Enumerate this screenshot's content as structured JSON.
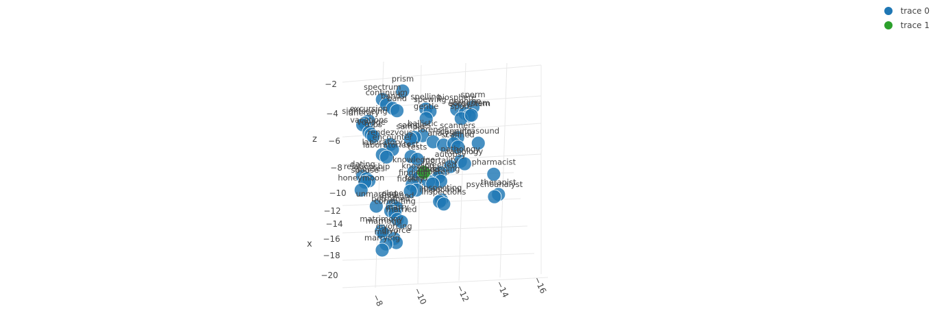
{
  "chart_data": {
    "type": "scatter",
    "mode": "markers+text",
    "title": "",
    "axes": {
      "x": {
        "label": "x",
        "ticks": [
          "−12",
          "−14",
          "−16",
          "−18",
          "−20"
        ]
      },
      "y": {
        "label": "",
        "ticks": [
          "−8",
          "−10",
          "−12",
          "−14",
          "−16"
        ]
      },
      "z": {
        "label": "z",
        "ticks": [
          "−2",
          "−4",
          "−6",
          "−8",
          "−10"
        ]
      }
    },
    "legend": {
      "placement": "top-right"
    },
    "series": [
      {
        "name": "trace 0",
        "color": "#1f77b4",
        "points": [
          {
            "label": "prism",
            "x": -11.3,
            "y": -9.3,
            "z": -1.0
          },
          {
            "label": "spectrum",
            "x": -11.5,
            "y": -8.3,
            "z": -2.0
          },
          {
            "label": "continuum",
            "x": -11.6,
            "y": -8.5,
            "z": -2.4
          },
          {
            "label": "bands",
            "x": -11.7,
            "y": -8.8,
            "z": -2.6
          },
          {
            "label": "band",
            "x": -11.8,
            "y": -9.0,
            "z": -2.7
          },
          {
            "label": "spelling",
            "x": -11.9,
            "y": -10.4,
            "z": -2.0
          },
          {
            "label": "spewing",
            "x": -12.0,
            "y": -10.6,
            "z": -2.1
          },
          {
            "label": "gentle",
            "x": -12.3,
            "y": -10.4,
            "z": -2.6
          },
          {
            "label": "sperm",
            "x": -11.8,
            "y": -12.7,
            "z": -1.2
          },
          {
            "label": "biosphere",
            "x": -12.0,
            "y": -11.9,
            "z": -1.5
          },
          {
            "label": "genome",
            "x": -12.1,
            "y": -12.3,
            "z": -1.7
          },
          {
            "label": "ecosystem",
            "x": -12.2,
            "y": -12.5,
            "z": -1.8
          },
          {
            "label": "spore",
            "x": -12.4,
            "y": -12.1,
            "z": -2.0
          },
          {
            "label": "organism",
            "x": -12.3,
            "y": -12.6,
            "z": -1.6
          },
          {
            "label": "excursion",
            "x": -12.4,
            "y": -7.6,
            "z": -3.6
          },
          {
            "label": "sightseeing",
            "x": -12.5,
            "y": -7.4,
            "z": -3.8
          },
          {
            "label": "itinerary",
            "x": -12.6,
            "y": -7.3,
            "z": -3.9
          },
          {
            "label": "vacations",
            "x": -12.8,
            "y": -7.6,
            "z": -4.4
          },
          {
            "label": "voyage",
            "x": -12.9,
            "y": -7.7,
            "z": -4.5
          },
          {
            "label": "trips",
            "x": -13.0,
            "y": -7.8,
            "z": -4.6
          },
          {
            "label": "ballistic",
            "x": -13.0,
            "y": -10.2,
            "z": -3.8
          },
          {
            "label": "samples",
            "x": -13.1,
            "y": -9.8,
            "z": -4.0
          },
          {
            "label": "sample",
            "x": -13.2,
            "y": -9.6,
            "z": -4.1
          },
          {
            "label": "forensic",
            "x": -13.3,
            "y": -10.7,
            "z": -4.0
          },
          {
            "label": "analysis",
            "x": -13.4,
            "y": -11.2,
            "z": -4.1
          },
          {
            "label": "scanners",
            "x": -13.1,
            "y": -11.9,
            "z": -3.4
          },
          {
            "label": "scanning",
            "x": -13.4,
            "y": -11.7,
            "z": -3.8
          },
          {
            "label": "ultrasound",
            "x": -13.2,
            "y": -12.9,
            "z": -3.6
          },
          {
            "label": "scanned",
            "x": -13.5,
            "y": -11.9,
            "z": -4.0
          },
          {
            "label": "rendezvous",
            "x": -13.6,
            "y": -8.6,
            "z": -4.6
          },
          {
            "label": "encounter",
            "x": -13.8,
            "y": -8.7,
            "z": -4.9
          },
          {
            "label": "laboratory",
            "x": -14.0,
            "y": -8.2,
            "z": -5.4
          },
          {
            "label": "laboratories",
            "x": -14.1,
            "y": -8.4,
            "z": -5.5
          },
          {
            "label": "test",
            "x": -14.0,
            "y": -9.6,
            "z": -5.2
          },
          {
            "label": "tests",
            "x": -14.1,
            "y": -9.9,
            "z": -5.3
          },
          {
            "label": "pathology",
            "x": -14.0,
            "y": -12.0,
            "z": -5.0
          },
          {
            "label": "radiology",
            "x": -14.1,
            "y": -12.2,
            "z": -5.1
          },
          {
            "label": "autopsy",
            "x": -14.3,
            "y": -11.5,
            "z": -5.4
          },
          {
            "label": "pharmacist",
            "x": -14.5,
            "y": -13.6,
            "z": -5.4
          },
          {
            "label": "knowledge",
            "x": -14.7,
            "y": -9.7,
            "z": -6.1
          },
          {
            "label": "knowing",
            "x": -15.0,
            "y": -9.9,
            "z": -6.4
          },
          {
            "label": "mortality",
            "x": -14.6,
            "y": -11.0,
            "z": -5.9
          },
          {
            "label": "screened",
            "x": -14.8,
            "y": -10.9,
            "z": -6.2
          },
          {
            "label": "screening",
            "x": -15.0,
            "y": -11.0,
            "z": -6.4
          },
          {
            "label": "blood",
            "x": -15.1,
            "y": -10.4,
            "z": -6.5
          },
          {
            "label": "diabetes",
            "x": -15.2,
            "y": -10.6,
            "z": -6.6
          },
          {
            "label": "dating",
            "x": -15.0,
            "y": -7.2,
            "z": -7.0
          },
          {
            "label": "relationship",
            "x": -15.1,
            "y": -7.4,
            "z": -7.1
          },
          {
            "label": "spouses",
            "x": -15.2,
            "y": -7.5,
            "z": -7.2
          },
          {
            "label": "spouse",
            "x": -15.3,
            "y": -7.3,
            "z": -7.3
          },
          {
            "label": "therapist",
            "x": -15.3,
            "y": -13.8,
            "z": -6.7
          },
          {
            "label": "psychoanalyst",
            "x": -15.4,
            "y": -13.6,
            "z": -6.9
          },
          {
            "label": "finding",
            "x": -15.3,
            "y": -9.6,
            "z": -6.9
          },
          {
            "label": "found",
            "x": -15.5,
            "y": -9.8,
            "z": -7.2
          },
          {
            "label": "fidelity",
            "x": -15.6,
            "y": -9.5,
            "z": -7.3
          },
          {
            "label": "honeymoon",
            "x": -15.7,
            "y": -7.1,
            "z": -7.8
          },
          {
            "label": "inspecting",
            "x": -16.0,
            "y": -11.0,
            "z": -7.4
          },
          {
            "label": "inspection",
            "x": -16.1,
            "y": -10.9,
            "z": -7.5
          },
          {
            "label": "inspections",
            "x": -16.2,
            "y": -11.1,
            "z": -7.6
          },
          {
            "label": "unmarried",
            "x": -16.6,
            "y": -7.8,
            "z": -8.4
          },
          {
            "label": "elope",
            "x": -16.4,
            "y": -8.6,
            "z": -8.3
          },
          {
            "label": "engaged",
            "x": -16.5,
            "y": -8.8,
            "z": -8.4
          },
          {
            "label": "betrothed",
            "x": -16.7,
            "y": -8.5,
            "z": -8.6
          },
          {
            "label": "cohabiting",
            "x": -16.8,
            "y": -8.7,
            "z": -8.7
          },
          {
            "label": "marry",
            "x": -17.1,
            "y": -8.8,
            "z": -9.0
          },
          {
            "label": "married",
            "x": -17.2,
            "y": -9.0,
            "z": -9.1
          },
          {
            "label": "matrimony",
            "x": -17.8,
            "y": -8.0,
            "z": -9.8
          },
          {
            "label": "marriage",
            "x": -17.9,
            "y": -8.1,
            "z": -9.9
          },
          {
            "label": "divorcing",
            "x": -18.2,
            "y": -8.6,
            "z": -10.0
          },
          {
            "label": "divorce",
            "x": -18.4,
            "y": -8.7,
            "z": -10.2
          },
          {
            "label": "marry",
            "x": -18.5,
            "y": -8.2,
            "z": -10.4
          },
          {
            "label": "marrying",
            "x": -18.8,
            "y": -8.0,
            "z": -10.8
          }
        ]
      },
      {
        "name": "trace 1",
        "color": "#2ca02c",
        "points": [
          {
            "label": "",
            "x": -14.5,
            "y": -10.2,
            "z": -6.2
          }
        ]
      }
    ]
  }
}
